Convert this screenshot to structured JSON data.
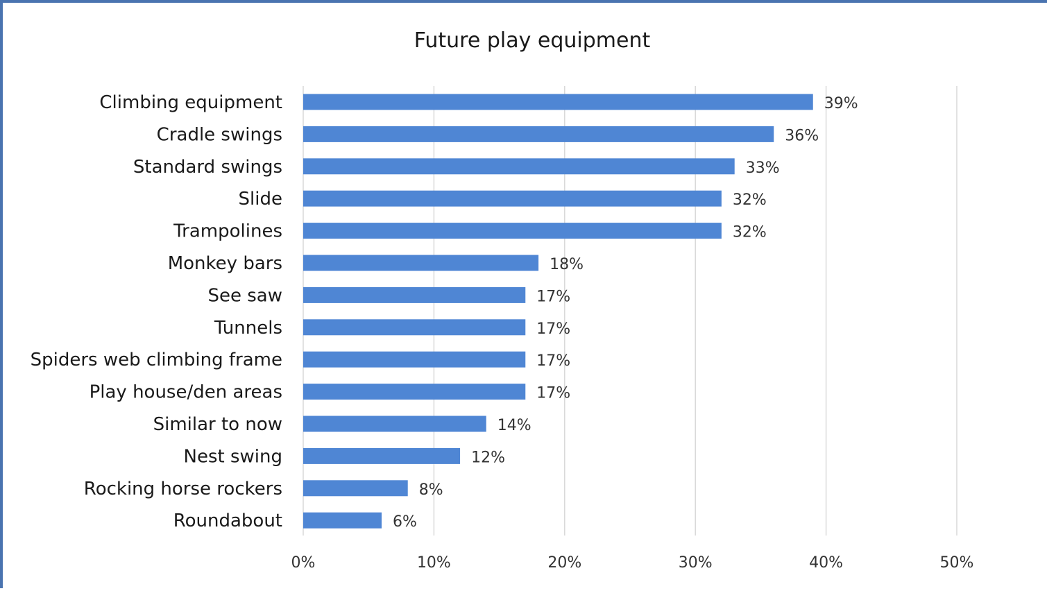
{
  "chart_data": {
    "type": "bar",
    "orientation": "horizontal",
    "title": "Future play equipment",
    "categories": [
      "Climbing equipment",
      "Cradle swings",
      "Standard swings",
      "Slide",
      "Trampolines",
      "Monkey bars",
      "See saw",
      "Tunnels",
      "Spiders web climbing frame",
      "Play house/den areas",
      "Similar to now",
      "Nest swing",
      "Rocking horse rockers",
      "Roundabout"
    ],
    "values": [
      39,
      36,
      33,
      32,
      32,
      18,
      17,
      17,
      17,
      17,
      14,
      12,
      8,
      6
    ],
    "data_labels": [
      "39%",
      "36%",
      "33%",
      "32%",
      "32%",
      "18%",
      "17%",
      "17%",
      "17%",
      "17%",
      "14%",
      "12%",
      "8%",
      "6%"
    ],
    "xlim": [
      0,
      50
    ],
    "x_ticks": [
      0,
      10,
      20,
      30,
      40,
      50
    ],
    "x_tick_labels": [
      "0%",
      "10%",
      "20%",
      "30%",
      "40%",
      "50%"
    ],
    "grid": true,
    "legend": "none",
    "bar_color": "#4f86d4",
    "border_color": "#4a74b0"
  }
}
